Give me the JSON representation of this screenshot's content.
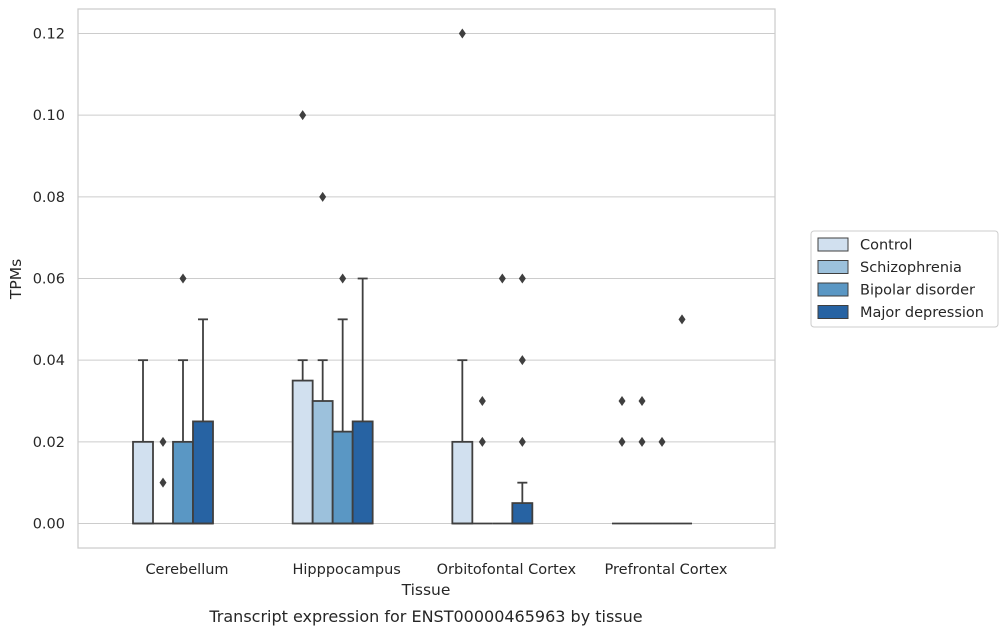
{
  "chart_data": {
    "type": "box",
    "title": "",
    "caption": "Transcript expression for ENST00000465963 by tissue",
    "xlabel": "Tissue",
    "ylabel": "TPMs",
    "ylim": [
      -0.006,
      0.126
    ],
    "yticks": [
      "0.00",
      "0.02",
      "0.04",
      "0.06",
      "0.08",
      "0.10",
      "0.12"
    ],
    "grid": "horizontal",
    "legend_position": "right",
    "categories": [
      "Cerebellum",
      "Hipppocampus",
      "Orbitofontal Cortex",
      "Prefrontal Cortex"
    ],
    "series": [
      {
        "name": "Control",
        "color": "#d1e0ef",
        "boxes": [
          {
            "q1": 0.0,
            "q3": 0.02,
            "median": 0.0,
            "whisker_low": 0.0,
            "whisker_high": 0.04,
            "outliers": []
          },
          {
            "q1": 0.0,
            "q3": 0.035,
            "median": 0.0,
            "whisker_low": 0.0,
            "whisker_high": 0.04,
            "outliers": [
              0.1
            ]
          },
          {
            "q1": 0.0,
            "q3": 0.02,
            "median": 0.0,
            "whisker_low": 0.0,
            "whisker_high": 0.04,
            "outliers": [
              0.12
            ]
          },
          {
            "q1": 0.0,
            "q3": 0.0,
            "median": 0.0,
            "whisker_low": 0.0,
            "whisker_high": 0.0,
            "outliers": [
              0.02,
              0.03
            ]
          }
        ]
      },
      {
        "name": "Schizophrenia",
        "color": "#9cc1dc",
        "boxes": [
          {
            "q1": 0.0,
            "q3": 0.0,
            "median": 0.0,
            "whisker_low": 0.0,
            "whisker_high": 0.0,
            "outliers": [
              0.01,
              0.02
            ]
          },
          {
            "q1": 0.0,
            "q3": 0.03,
            "median": 0.0,
            "whisker_low": 0.0,
            "whisker_high": 0.04,
            "outliers": [
              0.08
            ]
          },
          {
            "q1": 0.0,
            "q3": 0.0,
            "median": 0.0,
            "whisker_low": 0.0,
            "whisker_high": 0.0,
            "outliers": [
              0.02,
              0.03
            ]
          },
          {
            "q1": 0.0,
            "q3": 0.0,
            "median": 0.0,
            "whisker_low": 0.0,
            "whisker_high": 0.0,
            "outliers": [
              0.02,
              0.03
            ]
          }
        ]
      },
      {
        "name": "Bipolar disorder",
        "color": "#5a97c4",
        "boxes": [
          {
            "q1": 0.0,
            "q3": 0.02,
            "median": 0.0,
            "whisker_low": 0.0,
            "whisker_high": 0.04,
            "outliers": [
              0.06
            ]
          },
          {
            "q1": 0.0,
            "q3": 0.0225,
            "median": 0.0,
            "whisker_low": 0.0,
            "whisker_high": 0.05,
            "outliers": [
              0.06
            ]
          },
          {
            "q1": 0.0,
            "q3": 0.0,
            "median": 0.0,
            "whisker_low": 0.0,
            "whisker_high": 0.0,
            "outliers": [
              0.06
            ]
          },
          {
            "q1": 0.0,
            "q3": 0.0,
            "median": 0.0,
            "whisker_low": 0.0,
            "whisker_high": 0.0,
            "outliers": [
              0.02
            ]
          }
        ]
      },
      {
        "name": "Major depression",
        "color": "#2763a3",
        "boxes": [
          {
            "q1": 0.0,
            "q3": 0.025,
            "median": 0.0,
            "whisker_low": 0.0,
            "whisker_high": 0.05,
            "outliers": []
          },
          {
            "q1": 0.0,
            "q3": 0.025,
            "median": 0.0,
            "whisker_low": 0.0,
            "whisker_high": 0.06,
            "outliers": []
          },
          {
            "q1": 0.0,
            "q3": 0.005,
            "median": 0.0,
            "whisker_low": 0.0,
            "whisker_high": 0.01,
            "outliers": [
              0.02,
              0.04,
              0.06
            ]
          },
          {
            "q1": 0.0,
            "q3": 0.0,
            "median": 0.0,
            "whisker_low": 0.0,
            "whisker_high": 0.0,
            "outliers": [
              0.05
            ]
          }
        ]
      }
    ]
  }
}
